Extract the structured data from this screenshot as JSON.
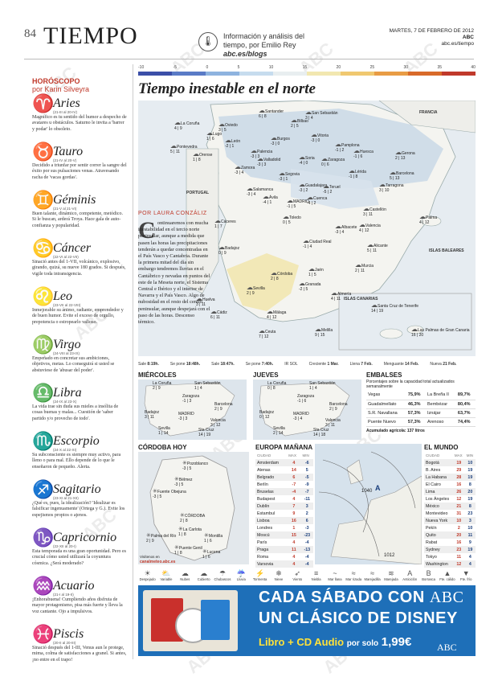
{
  "header": {
    "page_number": "84",
    "section": "TIEMPO",
    "byline_1": "Información y análisis del",
    "byline_2": "tiempo, por Emilio Rey",
    "byline_url": "abc.es/blogs",
    "date": "MARTES, 7 DE FEBRERO DE 2012",
    "brand": "ABC",
    "site": "abc.es/tiempo"
  },
  "watermark": "ABC",
  "horoscope": {
    "heading": "HORÓSCOPO",
    "author": "por Karin Silveyra",
    "signs": [
      {
        "symbol": "♈",
        "name": "Aries",
        "dates": "(21-III al 20-IV)",
        "text": "Magnífico es tu sentido del humor a despecho de avatares u obstáculos. Saturno le invita a 'barrer y podar' lo obsoleto."
      },
      {
        "symbol": "♉",
        "name": "Tauro",
        "dates": "(21-IV al 20-V)",
        "text": "Decidido a triunfar por sentir correr la sangre del éxito por sus pulsaciones venas. Atravesando racha de 'vacas gordas'."
      },
      {
        "symbol": "♊",
        "name": "Géminis",
        "dates": "(21-V al 21-VI)",
        "text": "Buen talante, dinámico, competente, metódico. Si le buscan, arderá Troya. Hace gala de auto-confianza y popularidad."
      },
      {
        "symbol": "♋",
        "name": "Cáncer",
        "dates": "(22-VI al 22-VII)",
        "text": "Sinació antes del 1-VII, volcánico, explosivo, girando, quizá, su nueve 180 grados. Si después, vigile toda intransigencia."
      },
      {
        "symbol": "♌",
        "name": "Leo",
        "dates": "(23-VII al 22-VIII)",
        "text": "Inmejorable su ánimo, radiante, emprendedor y de buen humor. Evite el exceso de orgullo, prepotencia o estropearlo valioso."
      },
      {
        "symbol": "♍",
        "name": "Virgo",
        "dates": "(24-VIII al 23-IX)",
        "text": "Empeñado en concretar sus ambiciones, objetivos, metas. Lo conseguirá si usted se abstuviese de 'abusar del poder'."
      },
      {
        "symbol": "♎",
        "name": "Libra",
        "dates": "(24-IX al 23-X)",
        "text": "La vida trae sin duda sus mieles a insólita de cosas buenas y malas... Cuestión de 'saber partido y/o provecho de todo'."
      },
      {
        "symbol": "♏",
        "name": "Escorpio",
        "dates": "(24-X al 22-XI)",
        "text": "Su subconsciente es siempre muy activo, para lleno o para mal. Ello depende de lo que le enseñaron de pequeño. Alerta."
      },
      {
        "symbol": "♐",
        "name": "Sagitario",
        "dates": "(23-XI al 21-XII)",
        "text": "¿Qué es, pues, la idealización? 'Idealizar es falsificar ingenuamente' (Ortega y G.). Evite los espejismos propios o ajenos."
      },
      {
        "symbol": "♑",
        "name": "Capricornio",
        "dates": "(22-XII al 20-I)",
        "text": "Esta temporada es una gran oportunidad. Pero es crucial cómo usted utilizará la coyuntura cósmica. ¿Será moderado?"
      },
      {
        "symbol": "♒",
        "name": "Acuario",
        "dates": "(21-I al 19-II)",
        "text": "¡Enhorabuena! Cumpliendo años disfruta de mayor protagonismo, pisa más fuerte y lleva la voz cantante. Ojo a impulsivos."
      },
      {
        "symbol": "♓",
        "name": "Piscis",
        "dates": "(20-II al 20-III)",
        "text": "Sinació después del 1-III, Venus aun le protege, mima, colma de satisfacciones a granel. Si antes, ¡no entre en el trapo!"
      }
    ]
  },
  "main": {
    "title": "Tiempo inestable en el norte",
    "scale_labels": [
      "-10",
      "-5",
      "0",
      "5",
      "10",
      "15",
      "20",
      "25",
      "30",
      "35",
      "40"
    ],
    "scale_colors": [
      "#3b4fa8",
      "#5a7bc6",
      "#8eb3df",
      "#c6dcee",
      "#e8eef0",
      "#f2e7b0",
      "#f0c870",
      "#e89c45",
      "#d86a2a",
      "#c0392b"
    ],
    "author": "POR LAURA CONZÁLIZ",
    "drop_cap": "C",
    "article": "ontinuaremos con mucha inestabilidad en el tercio norte peninsular, aunque a medida que pasen las horas las precipitaciones tenderán a quedar concentradas en el País Vasco y Cantabria. Durante la primera mitad del día sin embargo tendremos lluvias en el Cantábrico y nevadas en puntos del este de la Meseta norte, el Sistema Central e Ibérico y el interior de Navarra y el País Vasco. Algo de nubosidad en el resto del centro peninsular, aunque despejará con el paso de las horas. Descenso térmico.",
    "france_label": "FRANCIA",
    "portugal_label": "PORTUGAL",
    "baleares_label": "ISLAS BALEARES",
    "canarias_label": "ISLAS CANARIAS",
    "cities": [
      {
        "name": "La Coruña",
        "temp": "4 | 9"
      },
      {
        "name": "Oviedo",
        "temp": "3 | 5"
      },
      {
        "name": "Santander",
        "temp": "6 | 8"
      },
      {
        "name": "San Sebastián",
        "temp": "3 | 4"
      },
      {
        "name": "Bilbao",
        "temp": "2 | 5"
      },
      {
        "name": "Lugo",
        "temp": "1 | 6"
      },
      {
        "name": "León",
        "temp": "-2 | 1"
      },
      {
        "name": "Burgos",
        "temp": "-3 | 0"
      },
      {
        "name": "Vitoria",
        "temp": "-3 | 0"
      },
      {
        "name": "Pamplona",
        "temp": "-1 | 2"
      },
      {
        "name": "Huesca",
        "temp": "-1 | 6"
      },
      {
        "name": "Lérida",
        "temp": "-1 | 8"
      },
      {
        "name": "Gerona",
        "temp": "2 | 13"
      },
      {
        "name": "Barcelona",
        "temp": "5 | 13"
      },
      {
        "name": "Pontevedra",
        "temp": "5 | 11"
      },
      {
        "name": "Orense",
        "temp": "1 | 8"
      },
      {
        "name": "Palencia",
        "temp": "-3 | 3"
      },
      {
        "name": "Valladolid",
        "temp": "-3 | 3"
      },
      {
        "name": "Soria",
        "temp": "-4 | 0"
      },
      {
        "name": "Zaragoza",
        "temp": "0 | 6"
      },
      {
        "name": "Zamora",
        "temp": "-3 | 4"
      },
      {
        "name": "Segovia",
        "temp": "-3 | 1"
      },
      {
        "name": "Guadalajara",
        "temp": "-3 | 2"
      },
      {
        "name": "Teruel",
        "temp": "-5 | 2"
      },
      {
        "name": "Tarragona",
        "temp": "3 | 10"
      },
      {
        "name": "Salamanca",
        "temp": "-3 | 4"
      },
      {
        "name": "Ávila",
        "temp": "-4 | 1"
      },
      {
        "name": "MADRID",
        "temp": "-1 | 5"
      },
      {
        "name": "Cuenca",
        "temp": "-4 | 2"
      },
      {
        "name": "Castellón",
        "temp": "3 | 11"
      },
      {
        "name": "Palma",
        "temp": "4 | 12"
      },
      {
        "name": "Cáceres",
        "temp": "1 | 7"
      },
      {
        "name": "Toledo",
        "temp": "0 | 5"
      },
      {
        "name": "Valencia",
        "temp": "4 | 12"
      },
      {
        "name": "Badajoz",
        "temp": "0 | 9"
      },
      {
        "name": "Ciudad Real",
        "temp": "-1 | 4"
      },
      {
        "name": "Albacete",
        "temp": "-3 | 4"
      },
      {
        "name": "Alicante",
        "temp": "5 | 11"
      },
      {
        "name": "Córdoba",
        "temp": "2 | 8"
      },
      {
        "name": "Jaén",
        "temp": "1 | 5"
      },
      {
        "name": "Murcia",
        "temp": "2 | 11"
      },
      {
        "name": "Huelva",
        "temp": "3 | 11"
      },
      {
        "name": "Sevilla",
        "temp": "2 | 9"
      },
      {
        "name": "Granada",
        "temp": "-2 | 5"
      },
      {
        "name": "Almería",
        "temp": "4 | 11"
      },
      {
        "name": "Cádiz",
        "temp": "6 | 11"
      },
      {
        "name": "Málaga",
        "temp": "4 | 12"
      },
      {
        "name": "Ceuta",
        "temp": "7 | 12"
      },
      {
        "name": "Melilla",
        "temp": "9 | 15"
      },
      {
        "name": "Santa Cruz de Tenerife",
        "temp": "14 | 19"
      },
      {
        "name": "Las Palmas de Gran Canaria",
        "temp": "16 | 20"
      }
    ],
    "sun": [
      {
        "label": "Sale",
        "value": "8:19h."
      },
      {
        "label": "Se pone",
        "value": "18:48h."
      },
      {
        "label": "Sale",
        "value": "18:47h."
      },
      {
        "label": "Se pone",
        "value": "7:40h."
      },
      {
        "label": "IR SOL",
        "value": ""
      },
      {
        "label": "Creciente",
        "value": "1 Mar."
      },
      {
        "label": "Llena",
        "value": "7 Feb."
      },
      {
        "label": "Menguante",
        "value": "14 Feb."
      },
      {
        "label": "Nueva",
        "value": "21 Feb."
      }
    ]
  },
  "miercoles": {
    "title": "MIÉRCOLES",
    "cities": [
      {
        "name": "La Coruña",
        "temp": "2 | 9"
      },
      {
        "name": "San Sebastián",
        "temp": "1 | 4"
      },
      {
        "name": "Zaragoza",
        "temp": "-1 | 3"
      },
      {
        "name": "Barcelona",
        "temp": "2 | 9"
      },
      {
        "name": "Badajoz",
        "temp": "3 | 11"
      },
      {
        "name": "MADRID",
        "temp": "-3 | 3"
      },
      {
        "name": "Valencia",
        "temp": "3 | 12"
      },
      {
        "name": "Sevilla",
        "temp": "1 | 14"
      },
      {
        "name": "Sta Cruz",
        "temp": "14 | 19"
      }
    ]
  },
  "jueves": {
    "title": "JUEVES",
    "cities": [
      {
        "name": "La Coruña",
        "temp": "0 | 8"
      },
      {
        "name": "San Sebastián",
        "temp": "1 | 4"
      },
      {
        "name": "Zaragoza",
        "temp": "-1 | 6"
      },
      {
        "name": "Barcelona",
        "temp": "2 | 9"
      },
      {
        "name": "Badajoz",
        "temp": "0 | 12"
      },
      {
        "name": "MADRID",
        "temp": "-3 | 4"
      },
      {
        "name": "Valencia",
        "temp": "3 | 11"
      },
      {
        "name": "Sevilla",
        "temp": "2 | 14"
      },
      {
        "name": "Sta Cruz",
        "temp": "14 | 18"
      }
    ]
  },
  "embalses": {
    "title": "EMBALSES",
    "subtitle": "Porcentajes sobre la capacidad total actualizados semanalmente",
    "rows": [
      [
        "Vegas",
        "75,9%",
        "La Breña II",
        "89,7%"
      ],
      [
        "Guadalmellato",
        "46,3%",
        "Bembézar",
        "80,4%"
      ],
      [
        "S.R. Navallana",
        "57,3%",
        "Iznájar",
        "63,7%"
      ],
      [
        "Puente Nuevo",
        "57,3%",
        "Arenoso",
        "74,4%"
      ]
    ],
    "footer": "Acumulado agrícola: 137 litros"
  },
  "cordoba": {
    "title": "CÓRDOBA HOY",
    "cities": [
      {
        "name": "Pozoblanco",
        "temp": "-3 | 5"
      },
      {
        "name": "Bélmez",
        "temp": "-3 | 5"
      },
      {
        "name": "Fuente Obejuna",
        "temp": "-3 | 5"
      },
      {
        "name": "CÓRDOBA",
        "temp": "2 | 8"
      },
      {
        "name": "La Carlota",
        "temp": "1 | 8"
      },
      {
        "name": "Palma del Río",
        "temp": "2 | 9"
      },
      {
        "name": "Montilla",
        "temp": "1 | 6"
      },
      {
        "name": "Puente Genil",
        "temp": "1 | 8"
      },
      {
        "name": "Lucena",
        "temp": "1 | 6"
      }
    ],
    "credit": "Visítenos en",
    "credit_url": "canalmeteo.abc.es"
  },
  "europa": {
    "title": "EUROPA MAÑANA",
    "headers": [
      "CIUDAD",
      "MAX",
      "MIN"
    ],
    "rows": [
      [
        "Amsterdam",
        "4",
        "-6"
      ],
      [
        "Atenas",
        "14",
        "5"
      ],
      [
        "Belgrado",
        "6",
        "-5"
      ],
      [
        "Berlín",
        "-7",
        "-9"
      ],
      [
        "Bruselas",
        "-4",
        "-7"
      ],
      [
        "Budapest",
        "4",
        "-11"
      ],
      [
        "Dublín",
        "7",
        "3"
      ],
      [
        "Estambul",
        "9",
        "2"
      ],
      [
        "Lisboa",
        "16",
        "6"
      ],
      [
        "Londres",
        "1",
        "-3"
      ],
      [
        "Moscú",
        "15",
        "-23"
      ],
      [
        "París",
        "4",
        "-4"
      ],
      [
        "Praga",
        "11",
        "-13"
      ],
      [
        "Roma",
        "4",
        "-4"
      ],
      [
        "Varsovia",
        "4",
        "-4"
      ]
    ],
    "isobar_1": "1040",
    "isobar_2": "1012",
    "pressure_label": "A"
  },
  "mundo": {
    "title": "EL MUNDO",
    "headers": [
      "CIUDAD",
      "MAX",
      "MIN"
    ],
    "rows": [
      [
        "Bogotá",
        "19",
        "10"
      ],
      [
        "B. Aires",
        "29",
        "19"
      ],
      [
        "La Habana",
        "28",
        "19"
      ],
      [
        "El Cairo",
        "16",
        "8"
      ],
      [
        "Lima",
        "26",
        "20"
      ],
      [
        "Los Ángeles",
        "12",
        "19"
      ],
      [
        "México",
        "21",
        "8"
      ],
      [
        "Montevideo",
        "31",
        "23"
      ],
      [
        "Nueva York",
        "10",
        "3"
      ],
      [
        "Pekín",
        "2",
        "10"
      ],
      [
        "Quito",
        "20",
        "11"
      ],
      [
        "Rabat",
        "16",
        "9"
      ],
      [
        "Sydney",
        "23",
        "19"
      ],
      [
        "Tokyo",
        "11",
        "4"
      ],
      [
        "Washington",
        "12",
        "4"
      ]
    ]
  },
  "legend": [
    "Despejado",
    "Variable",
    "Nubes",
    "Cubierto",
    "Chubascos",
    "Lluvia",
    "Tormenta",
    "Nieve",
    "Viento",
    "Niebla",
    "Mar llana",
    "Mar rizada",
    "Marejadilla",
    "Marejada",
    "Anticiclón",
    "Borrasca",
    "Fte. cálido",
    "Fte. frío"
  ],
  "ad": {
    "line1": "CADA SÁBADO CON",
    "line1_brand": "ABC",
    "line2": "UN CLÁSICO DE DISNEY",
    "line3a": "Libro",
    "line3b": "+ CD Audio",
    "line3c": "por solo",
    "price": "1,99€",
    "brand": "ABC"
  }
}
